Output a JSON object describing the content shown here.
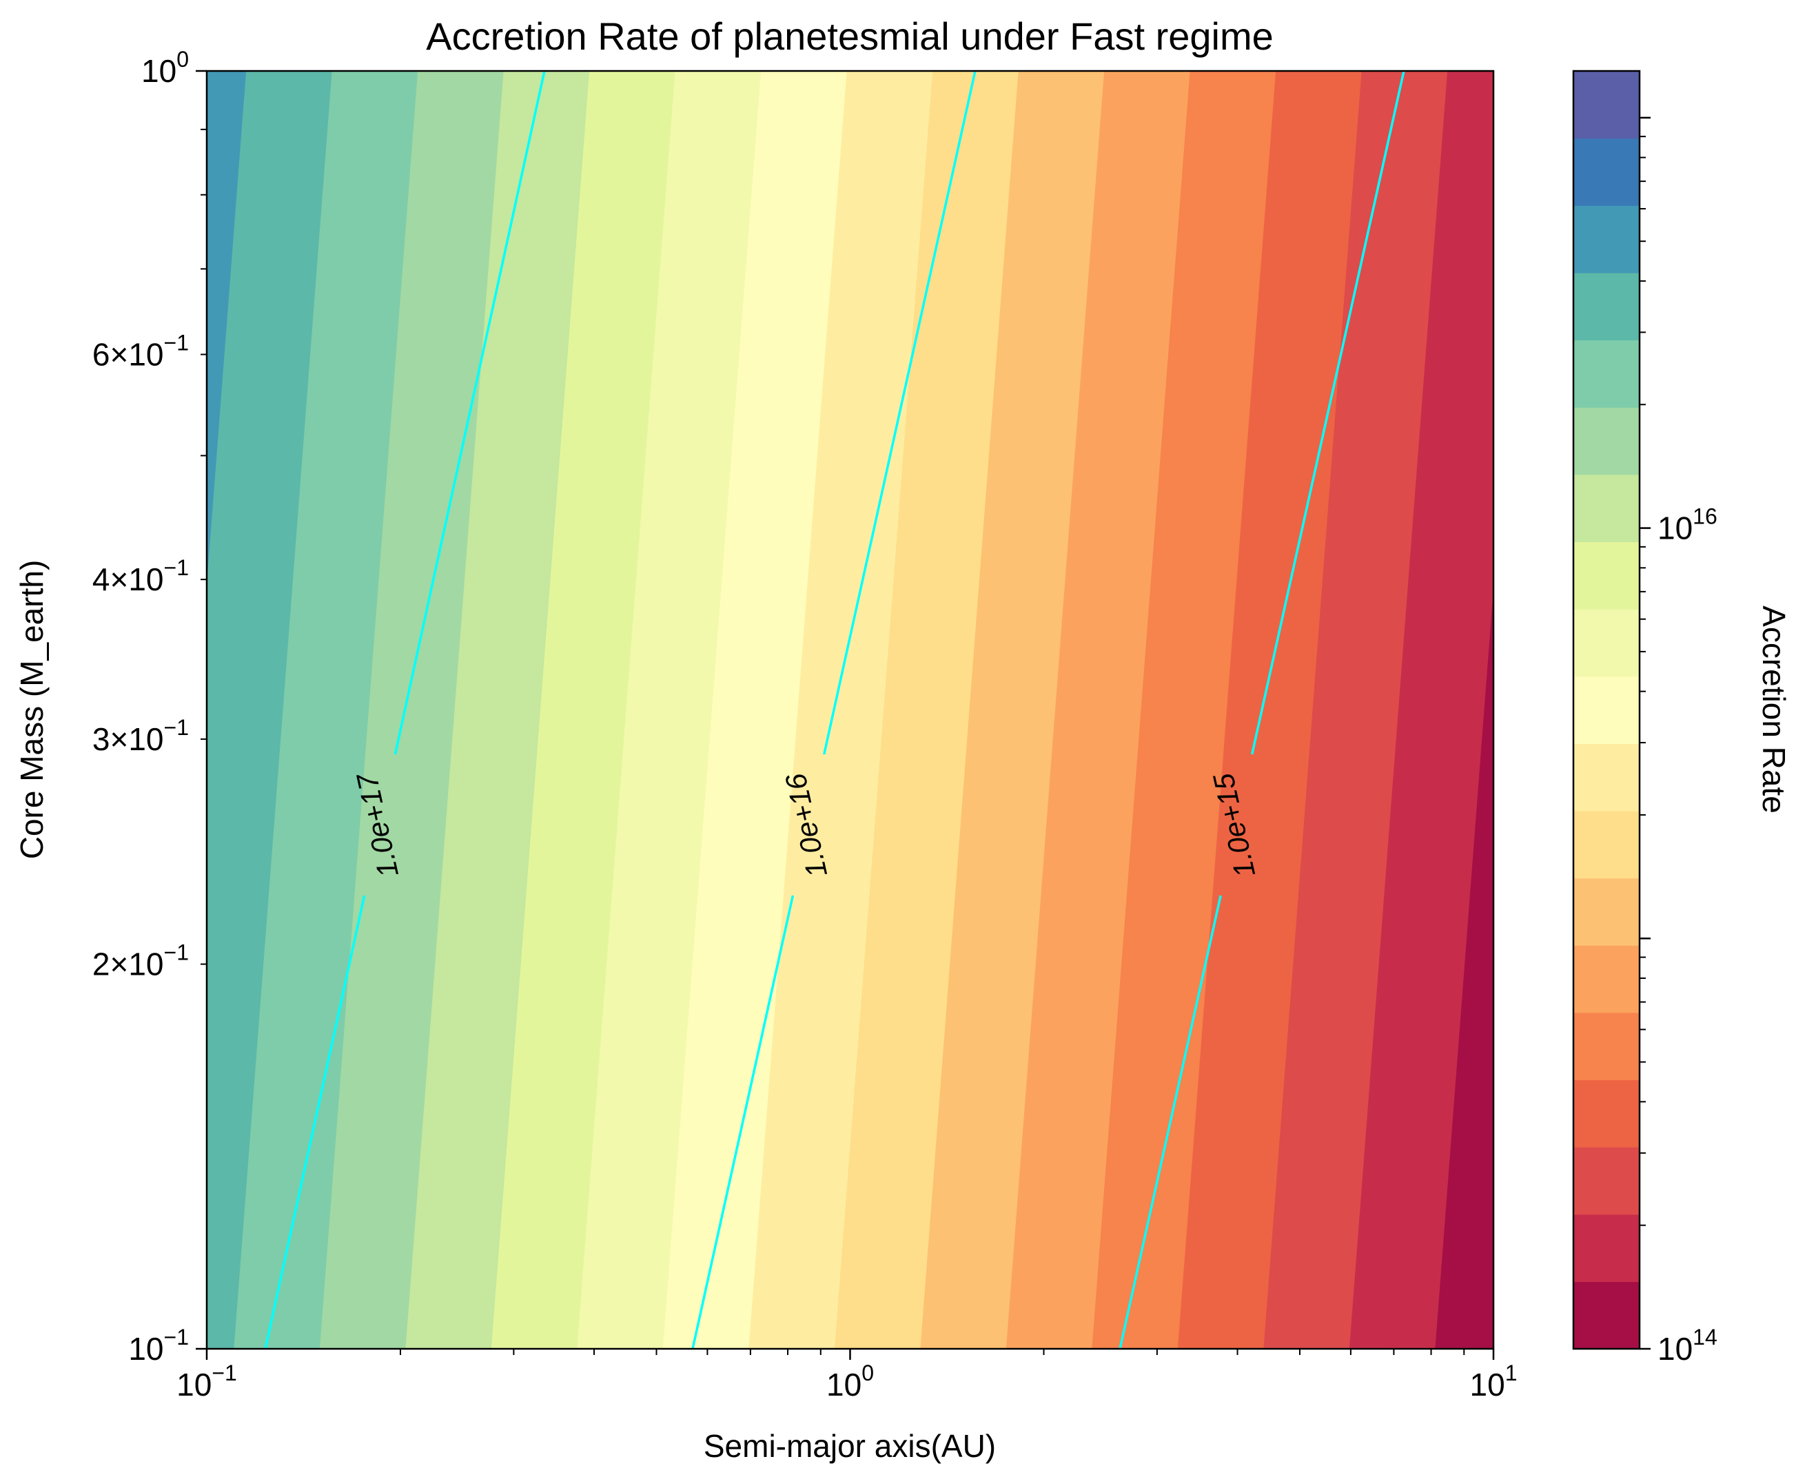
{
  "chart_data": {
    "type": "contourf",
    "title": "Accretion Rate of planetesmial under Fast regime",
    "xlabel": "Semi-major axis(AU)",
    "ylabel": "Core Mass (M_earth)",
    "colorbar_label": "Accretion Rate",
    "x_scale": "log",
    "y_scale": "log",
    "xlim": [
      0.1,
      10
    ],
    "ylim": [
      0.1,
      1
    ],
    "colorbar_scale": "log",
    "colorbar_range": [
      100000000000000.0,
      1.3e+17
    ],
    "x_ticks": [
      {
        "base": "10",
        "exp": "−1"
      },
      {
        "base": "10",
        "exp": "0"
      },
      {
        "base": "10",
        "exp": "1"
      }
    ],
    "y_ticks": [
      {
        "value": 0.1,
        "base": "10",
        "exp": "−1"
      },
      {
        "value": 0.2,
        "base": "2×10",
        "exp": "−1"
      },
      {
        "value": 0.3,
        "base": "3×10",
        "exp": "−1"
      },
      {
        "value": 0.4,
        "base": "4×10",
        "exp": "−1"
      },
      {
        "value": 0.6,
        "base": "6×10",
        "exp": "−1"
      },
      {
        "value": 1.0,
        "base": "10",
        "exp": "0"
      }
    ],
    "colorbar_ticks": [
      {
        "value": 100000000000000.0,
        "base": "10",
        "exp": "14"
      },
      {
        "value": 1e+16,
        "base": "10",
        "exp": "16"
      }
    ],
    "band_colors": [
      "#a50f46",
      "#c72d4b",
      "#de4b4b",
      "#ed6444",
      "#f7834d",
      "#fba35e",
      "#fdc173",
      "#fede8a",
      "#feeda1",
      "#fffdbb",
      "#f2f9ad",
      "#e3f59b",
      "#c5e79e",
      "#a2d8a3",
      "#7eccaa",
      "#5cb8a8",
      "#4299b6",
      "#3879b6",
      "#5a5fa8"
    ],
    "contour_lines": [
      {
        "label": "1.0e+17",
        "value": 1e+17,
        "color": "#00ffff"
      },
      {
        "label": "1.0e+16",
        "value": 1e+16,
        "color": "#00ffff"
      },
      {
        "label": "1.0e+15",
        "value": 1000000000000000.0,
        "color": "#00ffff"
      }
    ]
  }
}
